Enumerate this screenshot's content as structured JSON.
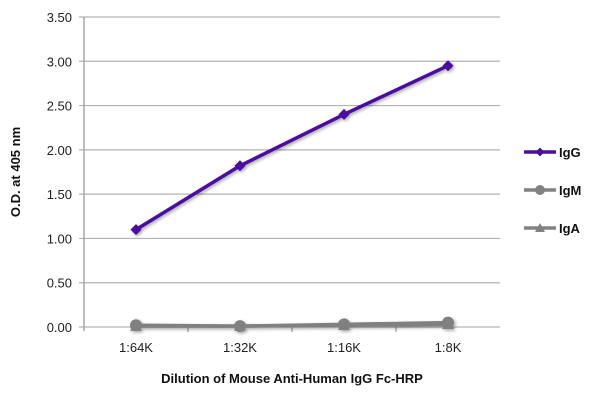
{
  "chart_data": {
    "type": "line",
    "title": "",
    "xlabel": "Dilution of Mouse Anti-Human IgG Fc-HRP",
    "ylabel": "O.D. at 405 nm",
    "categories": [
      "1:64K",
      "1:32K",
      "1:16K",
      "1:8K"
    ],
    "ylim": [
      0,
      3.5
    ],
    "yticks": [
      "0.00",
      "0.50",
      "1.00",
      "1.50",
      "2.00",
      "2.50",
      "3.00",
      "3.50"
    ],
    "grid": true,
    "legend_position": "right",
    "series": [
      {
        "name": "IgG",
        "values": [
          1.1,
          1.82,
          2.4,
          2.95
        ],
        "color": "#4b0f9e",
        "marker": "diamond"
      },
      {
        "name": "IgM",
        "values": [
          0.02,
          0.01,
          0.03,
          0.05
        ],
        "color": "#808080",
        "marker": "circle"
      },
      {
        "name": "IgA",
        "values": [
          0.01,
          0.01,
          0.02,
          0.03
        ],
        "color": "#808080",
        "marker": "triangle"
      }
    ]
  }
}
